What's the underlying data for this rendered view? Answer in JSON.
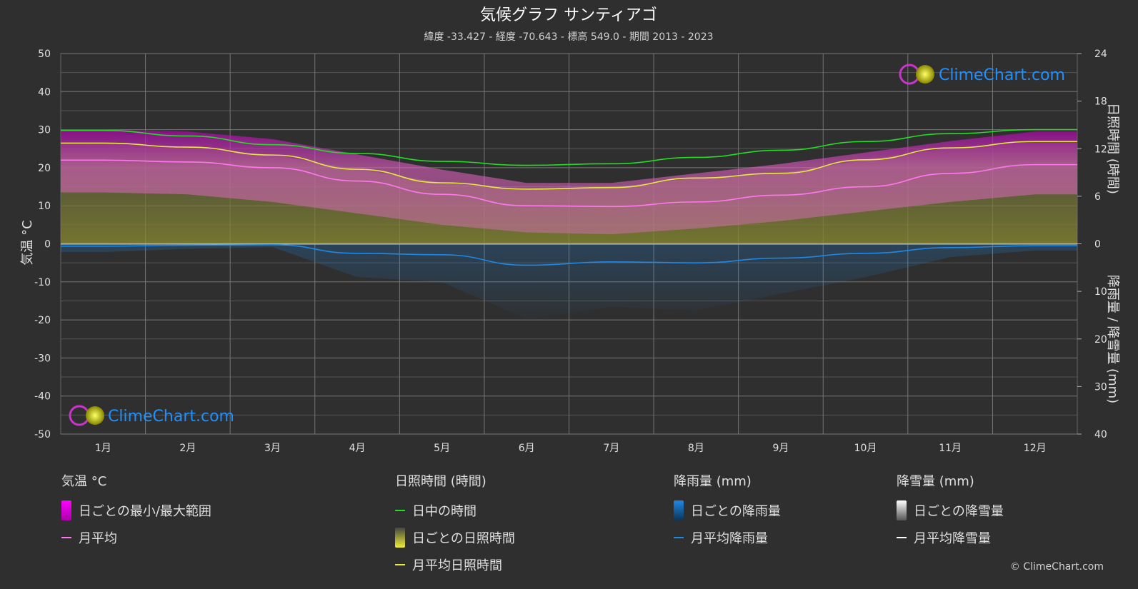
{
  "chart_data": {
    "type": "line",
    "title": "気候グラフ サンティアゴ",
    "subtitle": "緯度 -33.427 - 経度 -70.643 - 標高 549.0 - 期間 2013 - 2023",
    "categories": [
      "1月",
      "2月",
      "3月",
      "4月",
      "5月",
      "6月",
      "7月",
      "8月",
      "9月",
      "10月",
      "11月",
      "12月"
    ],
    "y_left": {
      "label": "気温 °C",
      "range": [
        -50,
        50
      ],
      "ticks": [
        50,
        40,
        30,
        20,
        10,
        0,
        -10,
        -20,
        -30,
        -40,
        -50
      ]
    },
    "y_right_top": {
      "label": "日照時間 (時間)",
      "range": [
        0,
        24
      ],
      "ticks": [
        24,
        18,
        12,
        6,
        0
      ]
    },
    "y_right_bottom": {
      "label": "降雨量 / 降雪量 (mm)",
      "range": [
        0,
        40
      ],
      "ticks": [
        10,
        20,
        30,
        40
      ]
    },
    "series": [
      {
        "name": "日中の時間",
        "axis": "sunshine",
        "color": "#22dd22",
        "values": [
          14.3,
          13.6,
          12.5,
          11.4,
          10.4,
          9.9,
          10.1,
          10.9,
          11.8,
          12.9,
          13.9,
          14.4
        ]
      },
      {
        "name": "月平均日照時間",
        "axis": "sunshine",
        "color": "#e8e840",
        "values": [
          12.7,
          12.2,
          11.2,
          9.4,
          7.7,
          6.9,
          7.1,
          8.3,
          8.9,
          10.6,
          12.1,
          12.9
        ]
      },
      {
        "name": "月平均",
        "axis": "temperature",
        "color": "#ff77ee",
        "values": [
          22,
          21.5,
          20,
          16.5,
          13,
          10,
          9.8,
          11,
          12.8,
          15,
          18.5,
          20.8
        ]
      },
      {
        "name": "月平均降雨量",
        "axis": "precipitation",
        "color": "#1e88e5",
        "values": [
          0.5,
          0.3,
          0.2,
          2.0,
          2.3,
          4.5,
          3.8,
          4.0,
          3.0,
          2.0,
          0.8,
          0.4
        ]
      },
      {
        "name": "月平均降雪量",
        "axis": "precipitation",
        "color": "#ffffff",
        "values": [
          0,
          0,
          0,
          0,
          0,
          0,
          0,
          0,
          0,
          0,
          0,
          0
        ]
      }
    ],
    "ranges": {
      "temp_max": [
        30,
        29.5,
        27.5,
        23.5,
        19.5,
        16,
        16,
        18.5,
        21,
        24,
        27,
        29.5
      ],
      "temp_min": [
        13.5,
        13,
        11,
        8,
        5,
        3,
        2.5,
        4,
        6,
        8.5,
        11,
        13
      ]
    },
    "legend": {
      "groups": [
        {
          "header": "気温 °C",
          "items": [
            "日ごとの最小/最大範囲",
            "月平均"
          ]
        },
        {
          "header": "日照時間 (時間)",
          "items": [
            "日中の時間",
            "日ごとの日照時間",
            "月平均日照時間"
          ]
        },
        {
          "header": "降雨量 (mm)",
          "items": [
            "日ごとの降雨量",
            "月平均降雨量"
          ]
        },
        {
          "header": "降雪量 (mm)",
          "items": [
            "日ごとの降雪量",
            "月平均降雪量"
          ]
        }
      ]
    },
    "watermark": "ClimeChart.com",
    "copyright": "© ClimeChart.com"
  }
}
